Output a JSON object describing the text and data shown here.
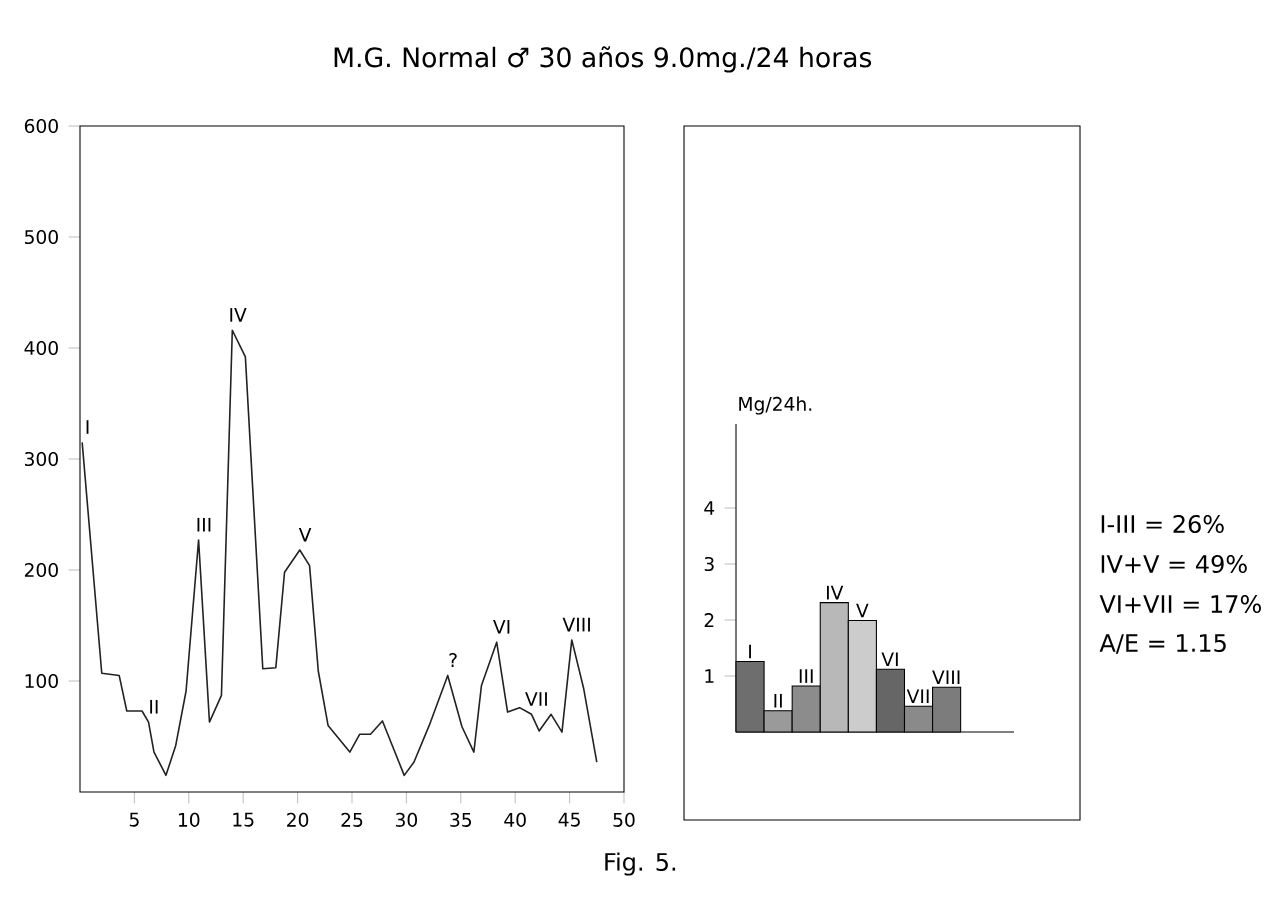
{
  "chart_data": [
    {
      "type": "line",
      "title": "M.G. Normal ♂ 30 años 9.0mg./24 horas",
      "color": "#222222",
      "marker": "none",
      "grid": false,
      "x": [
        0.2,
        2.0,
        3.6,
        4.3,
        5.7,
        6.3,
        6.8,
        7.9,
        8.8,
        9.75,
        10.9,
        11.9,
        13.0,
        14.0,
        15.2,
        16.8,
        18.0,
        18.8,
        20.2,
        21.1,
        21.9,
        22.8,
        24.8,
        25.7,
        26.7,
        27.8,
        29.8,
        30.7,
        32.1,
        33.8,
        35.1,
        36.2,
        36.9,
        38.3,
        39.3,
        40.4,
        41.5,
        42.2,
        43.3,
        44.3,
        45.2,
        46.3,
        47.5
      ],
      "values": [
        315,
        107,
        105,
        73,
        73,
        63,
        36,
        15,
        42,
        91,
        227,
        63,
        87,
        416,
        392,
        111,
        112,
        198,
        218,
        204,
        109,
        60,
        36,
        52,
        52,
        64,
        15,
        27,
        60,
        105,
        59,
        36,
        96,
        135,
        72,
        76,
        70,
        55,
        70,
        54,
        137,
        93,
        27
      ],
      "xlim": [
        0,
        50
      ],
      "ylim": [
        0,
        600
      ],
      "xticks": [
        5,
        10,
        15,
        20,
        25,
        30,
        35,
        40,
        45,
        50
      ],
      "yticks": [
        100,
        200,
        300,
        400,
        500,
        600
      ],
      "annotations": [
        {
          "text": "I",
          "x": 0.2,
          "y": 315
        },
        {
          "text": "II",
          "x": 6.3,
          "y": 63
        },
        {
          "text": "III",
          "x": 10.9,
          "y": 227
        },
        {
          "text": "IV",
          "x": 14.0,
          "y": 416
        },
        {
          "text": "V",
          "x": 20.2,
          "y": 218
        },
        {
          "text": "?",
          "x": 33.8,
          "y": 105
        },
        {
          "text": "VI",
          "x": 38.3,
          "y": 135
        },
        {
          "text": "VII",
          "x": 41.5,
          "y": 70
        },
        {
          "text": "VIII",
          "x": 45.2,
          "y": 137
        },
        "Fig. 5."
      ]
    },
    {
      "type": "bar",
      "ylabel": "Mg/24h.",
      "categories": [
        "I",
        "II",
        "III",
        "IV",
        "V",
        "VI",
        "VII",
        "VIII"
      ],
      "values": [
        1.26,
        0.38,
        0.82,
        2.31,
        1.99,
        1.12,
        0.46,
        0.8
      ],
      "colors": [
        "#6e6e6e",
        "#9a9a9a",
        "#8c8c8c",
        "#b8b8b8",
        "#cccccc",
        "#666666",
        "#8a8a8a",
        "#7c7c7c"
      ],
      "ylim": [
        0,
        5.5
      ],
      "yticks": [
        1,
        2,
        3,
        4
      ],
      "tick_labels": "y",
      "annotations": [
        "I-III = 26%",
        "IV+V = 49%",
        "VI+VII = 17%",
        "A/E = 1.15"
      ]
    }
  ]
}
